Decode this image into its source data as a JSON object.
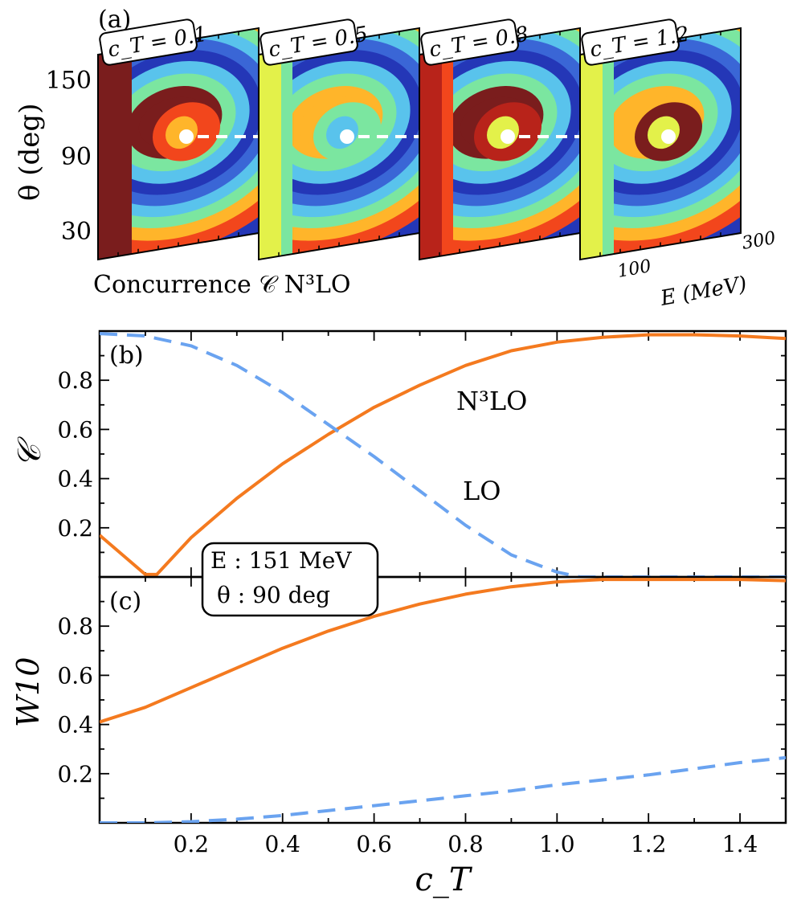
{
  "panel_a": {
    "label": "(a)",
    "ylabel": "θ (deg)",
    "yticks": [
      "150",
      "90",
      "30"
    ],
    "xticks": [
      "100",
      "300"
    ],
    "xlabel": "E (MeV)",
    "caption": "Concurrence 𝒞  N³LO",
    "maps": [
      {
        "tag": "c_T = 0.1",
        "ct": 0.1,
        "dot": true
      },
      {
        "tag": "c_T = 0.5",
        "ct": 0.5,
        "dot": true
      },
      {
        "tag": "c_T = 0.8",
        "ct": 0.8,
        "dot": true
      },
      {
        "tag": "c_T = 1.2",
        "ct": 1.2,
        "dot": true
      }
    ],
    "colormap": [
      "#2437b7",
      "#3a66d6",
      "#59c3ec",
      "#7be6a0",
      "#e3f14a",
      "#ffb52a",
      "#f2461c",
      "#b8231a",
      "#7a1d1d"
    ]
  },
  "chart_data": [
    {
      "type": "line",
      "panel": "(b)",
      "ylabel": "𝒞",
      "xlim": [
        0,
        1.5
      ],
      "ylim": [
        0,
        1.0
      ],
      "yticks": [
        0.2,
        0.4,
        0.6,
        0.8
      ],
      "series": [
        {
          "name": "N³LO",
          "color": "#f47a1f",
          "dash": false,
          "x": [
            0,
            0.05,
            0.1,
            0.125,
            0.2,
            0.3,
            0.4,
            0.5,
            0.6,
            0.7,
            0.8,
            0.9,
            1.0,
            1.1,
            1.2,
            1.3,
            1.4,
            1.5
          ],
          "y": [
            0.17,
            0.09,
            0.01,
            0.01,
            0.16,
            0.32,
            0.46,
            0.58,
            0.69,
            0.78,
            0.86,
            0.92,
            0.955,
            0.975,
            0.985,
            0.985,
            0.98,
            0.97
          ]
        },
        {
          "name": "LO",
          "color": "#6aa3f0",
          "dash": true,
          "x": [
            0,
            0.1,
            0.2,
            0.3,
            0.4,
            0.5,
            0.6,
            0.7,
            0.8,
            0.9,
            1.0,
            1.05,
            1.1,
            1.2,
            1.3,
            1.4,
            1.5
          ],
          "y": [
            0.99,
            0.98,
            0.94,
            0.86,
            0.75,
            0.62,
            0.49,
            0.35,
            0.21,
            0.09,
            0.02,
            0.0,
            0.0,
            0.0,
            0.0,
            0.0,
            0.0
          ]
        }
      ],
      "annotations": [
        "N³LO",
        "LO"
      ]
    },
    {
      "type": "line",
      "panel": "(c)",
      "ylabel": "W10",
      "xlabel": "c_T",
      "xlim": [
        0,
        1.5
      ],
      "ylim": [
        0,
        1.0
      ],
      "xticks": [
        0.2,
        0.4,
        0.6,
        0.8,
        1.0,
        1.2,
        1.4
      ],
      "yticks": [
        0.2,
        0.4,
        0.6,
        0.8
      ],
      "series": [
        {
          "name": "N³LO",
          "color": "#f47a1f",
          "dash": false,
          "x": [
            0,
            0.1,
            0.2,
            0.3,
            0.4,
            0.5,
            0.6,
            0.7,
            0.8,
            0.9,
            1.0,
            1.1,
            1.2,
            1.3,
            1.4,
            1.5
          ],
          "y": [
            0.41,
            0.47,
            0.55,
            0.63,
            0.71,
            0.78,
            0.84,
            0.89,
            0.93,
            0.96,
            0.98,
            0.99,
            0.99,
            0.99,
            0.99,
            0.985
          ]
        },
        {
          "name": "LO",
          "color": "#6aa3f0",
          "dash": true,
          "x": [
            0,
            0.1,
            0.2,
            0.3,
            0.4,
            0.5,
            0.6,
            0.7,
            0.8,
            0.9,
            1.0,
            1.1,
            1.2,
            1.3,
            1.4,
            1.5
          ],
          "y": [
            0.0,
            0.0,
            0.005,
            0.015,
            0.03,
            0.05,
            0.07,
            0.09,
            0.11,
            0.13,
            0.155,
            0.175,
            0.195,
            0.22,
            0.245,
            0.265
          ]
        }
      ]
    }
  ],
  "info_box": {
    "energy": "E : 151 MeV",
    "angle": "θ : 90 deg"
  }
}
